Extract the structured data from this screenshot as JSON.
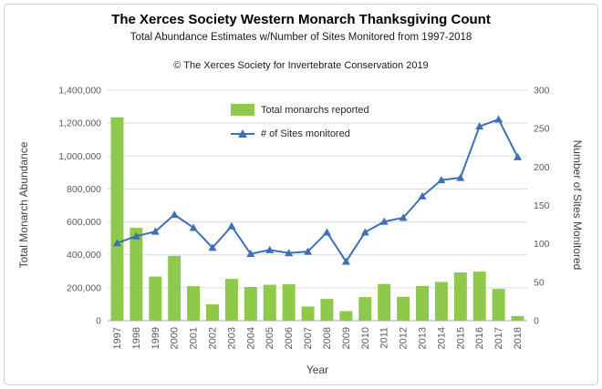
{
  "page": {
    "title": "The Xerces Society Western Monarch Thanksgiving Count",
    "subtitle": "Total Abundance Estimates w/Number of Sites Monitored from 1997-2018",
    "attribution": "© The Xerces Society for Invertebrate Conservation 2019"
  },
  "colors": {
    "bar": "#8fc94c",
    "line": "#3f6fb5",
    "grid": "#d9d9d9",
    "axis_line": "#a6a6a6",
    "tick_text": "#595959",
    "frame_border": "#cfcfcf"
  },
  "chart_data": {
    "type": "bar+line",
    "title": "The Xerces Society Western Monarch Thanksgiving Count",
    "subtitle": "Total Abundance Estimates w/Number of Sites Monitored from 1997-2018",
    "categories": [
      "1997",
      "1998",
      "1999",
      "2000",
      "2001",
      "2002",
      "2003",
      "2004",
      "2005",
      "2006",
      "2007",
      "2008",
      "2009",
      "2010",
      "2011",
      "2012",
      "2013",
      "2014",
      "2015",
      "2016",
      "2017",
      "2018"
    ],
    "series": [
      {
        "name": "Total monarchs reported",
        "type": "bar",
        "axis": "left",
        "color": "#8fc94c",
        "values": [
          1235000,
          564000,
          268000,
          394000,
          210000,
          99000,
          254000,
          205000,
          218000,
          221000,
          86000,
          132000,
          58000,
          143000,
          223000,
          145000,
          211000,
          235000,
          293000,
          298000,
          193000,
          28000
        ]
      },
      {
        "name": "# of Sites monitored",
        "type": "line",
        "axis": "right",
        "color": "#3f6fb5",
        "marker": "triangle",
        "values": [
          101,
          110,
          116,
          138,
          121,
          95,
          123,
          87,
          92,
          88,
          90,
          115,
          77,
          115,
          129,
          134,
          162,
          183,
          186,
          253,
          262,
          213
        ]
      }
    ],
    "left_axis": {
      "label": "Total Monarch Abundance",
      "min": 0,
      "max": 1400000,
      "step": 200000,
      "ticks": [
        "0",
        "200,000",
        "400,000",
        "600,000",
        "800,000",
        "1,000,000",
        "1,200,000",
        "1,400,000"
      ]
    },
    "right_axis": {
      "label": "Number of Sites Monitored",
      "min": 0,
      "max": 300,
      "step": 50,
      "ticks": [
        "0",
        "50",
        "100",
        "150",
        "200",
        "250",
        "300"
      ]
    },
    "x_axis": {
      "label": "Year"
    },
    "grid": true,
    "legend_position": "inside-top-center"
  }
}
